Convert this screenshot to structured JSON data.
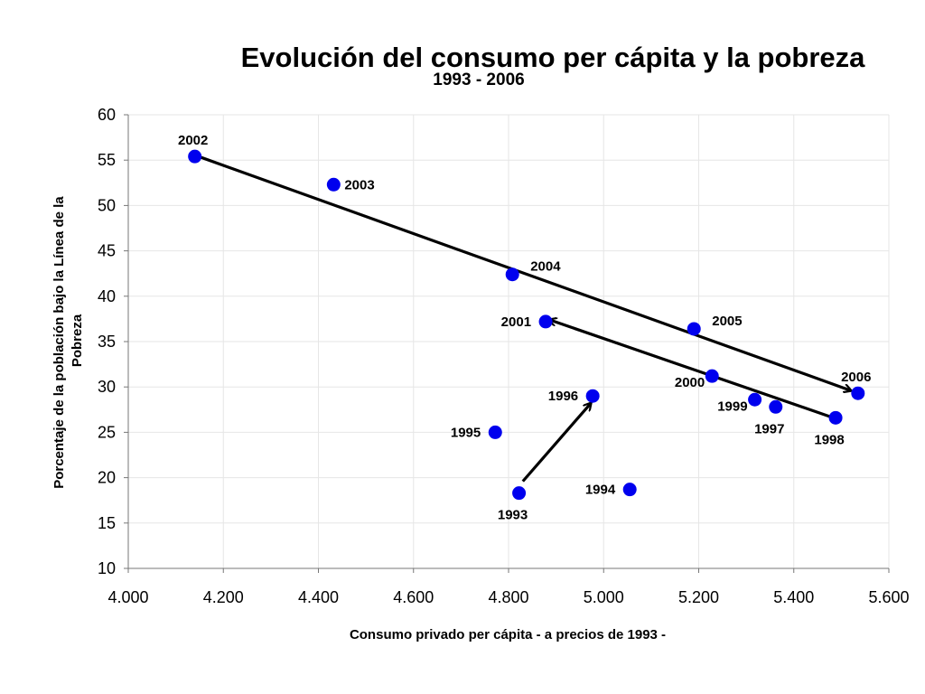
{
  "chart_data": {
    "type": "scatter",
    "title": "Evolución del consumo per cápita y la pobreza",
    "subtitle": "1993 - 2006",
    "xlabel": "Consumo privado per cápita - a precios de 1993 -",
    "ylabel_lines": [
      "Porcentaje de la población bajo la Línea de la",
      "Pobreza"
    ],
    "xlim": [
      4000,
      5600
    ],
    "ylim": [
      10,
      60
    ],
    "x_ticks": [
      4000,
      4200,
      4400,
      4600,
      4800,
      5000,
      5200,
      5400,
      5600
    ],
    "x_tick_labels": [
      "4.000",
      "4.200",
      "4.400",
      "4.600",
      "4.800",
      "5.000",
      "5.200",
      "5.400",
      "5.600"
    ],
    "y_ticks": [
      10,
      15,
      20,
      25,
      30,
      35,
      40,
      45,
      50,
      55,
      60
    ],
    "grid": true,
    "marker_color": "#0000ee",
    "points": [
      {
        "label": "1993",
        "x": 4822,
        "y": 18.3,
        "label_pos": "below"
      },
      {
        "label": "1994",
        "x": 5055,
        "y": 18.7,
        "label_pos": "left"
      },
      {
        "label": "1995",
        "x": 4772,
        "y": 25.0,
        "label_pos": "left"
      },
      {
        "label": "1996",
        "x": 4977,
        "y": 29.0,
        "label_pos": "left"
      },
      {
        "label": "1997",
        "x": 5362,
        "y": 27.8,
        "label_pos": "below"
      },
      {
        "label": "1998",
        "x": 5488,
        "y": 26.6,
        "label_pos": "below"
      },
      {
        "label": "1999",
        "x": 5318,
        "y": 28.6,
        "label_pos": "below-left"
      },
      {
        "label": "2000",
        "x": 5228,
        "y": 31.2,
        "label_pos": "below-left"
      },
      {
        "label": "2001",
        "x": 4878,
        "y": 37.2,
        "label_pos": "left"
      },
      {
        "label": "2002",
        "x": 4140,
        "y": 55.4,
        "label_pos": "above"
      },
      {
        "label": "2003",
        "x": 4432,
        "y": 52.3,
        "label_pos": "right"
      },
      {
        "label": "2004",
        "x": 4808,
        "y": 42.4,
        "label_pos": "above-right"
      },
      {
        "label": "2005",
        "x": 5190,
        "y": 36.4,
        "label_pos": "above-right"
      },
      {
        "label": "2006",
        "x": 5535,
        "y": 29.3,
        "label_pos": "above"
      }
    ],
    "arrows": [
      {
        "from": [
          4830,
          19.6
        ],
        "to": [
          4973,
          28.2
        ]
      },
      {
        "from": [
          5478,
          26.7
        ],
        "to": [
          4886,
          37.4
        ]
      },
      {
        "from": [
          4148,
          55.4
        ],
        "to": [
          5520,
          29.6
        ]
      }
    ]
  }
}
